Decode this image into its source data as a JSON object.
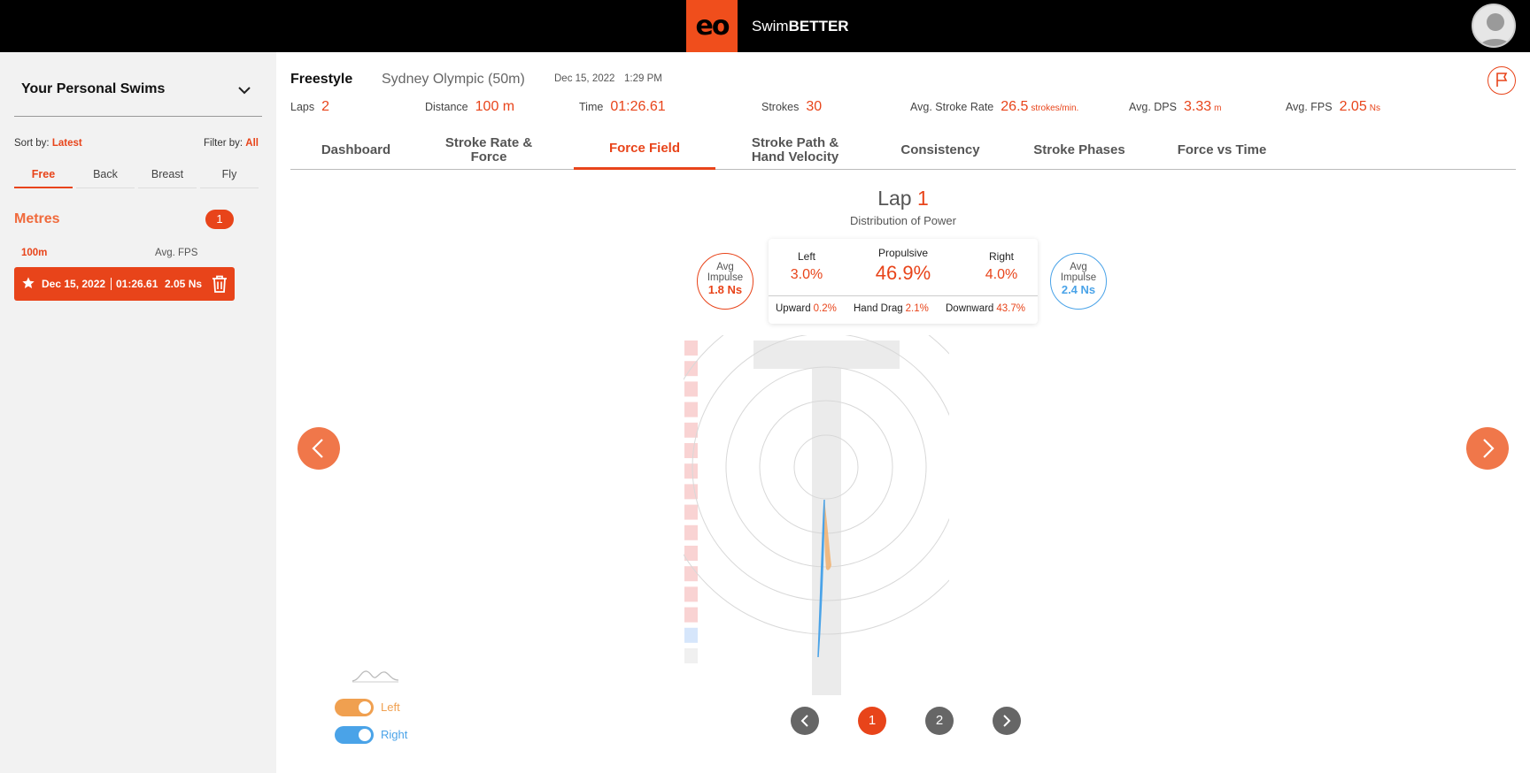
{
  "header": {
    "logo_text": "eo",
    "brand_prefix": "Swim",
    "brand_bold": "BETTER"
  },
  "sidebar": {
    "title": "Your Personal Swims",
    "sort_label": "Sort by:",
    "sort_value": "Latest",
    "filter_label": "Filter by:",
    "filter_value": "All",
    "stroke_tabs": [
      {
        "label": "Free",
        "active": true
      },
      {
        "label": "Back",
        "active": false
      },
      {
        "label": "Breast",
        "active": false
      },
      {
        "label": "Fly",
        "active": false
      }
    ],
    "group_label": "Metres",
    "group_count": "1",
    "col_distance": "100m",
    "col_fps": "Avg. FPS",
    "swims": [
      {
        "date": "Dec 15, 2022",
        "time": "01:26.61",
        "fps": "2.05 Ns"
      }
    ]
  },
  "session": {
    "stroke": "Freestyle",
    "pool": "Sydney Olympic (50m)",
    "date": "Dec 15, 2022",
    "time": "1:29 PM",
    "stats": [
      {
        "label": "Laps",
        "value": "2",
        "unit": ""
      },
      {
        "label": "Distance",
        "value": "100 m",
        "unit": ""
      },
      {
        "label": "Time",
        "value": "01:26.61",
        "unit": ""
      },
      {
        "label": "Strokes",
        "value": "30",
        "unit": ""
      },
      {
        "label": "Avg. Stroke Rate",
        "value": "26.5",
        "unit": "strokes/min."
      },
      {
        "label": "Avg. DPS",
        "value": "3.33",
        "unit": "m"
      },
      {
        "label": "Avg. FPS",
        "value": "2.05",
        "unit": "Ns"
      }
    ]
  },
  "tabs": [
    {
      "label": "Dashboard",
      "active": false
    },
    {
      "label": "Stroke Rate & Force",
      "active": false
    },
    {
      "label": "Force Field",
      "active": true
    },
    {
      "label": "Stroke Path & Hand Velocity",
      "active": false
    },
    {
      "label": "Consistency",
      "active": false
    },
    {
      "label": "Stroke Phases",
      "active": false
    },
    {
      "label": "Force vs Time",
      "active": false
    }
  ],
  "force_field": {
    "lap_label": "Lap",
    "lap_number": "1",
    "subtitle": "Distribution of Power",
    "left_impulse_label": "Avg Impulse",
    "left_impulse_value": "1.8 Ns",
    "right_impulse_label": "Avg Impulse",
    "right_impulse_value": "2.4 Ns",
    "left_label": "Left",
    "left_value": "3.0%",
    "propulsive_label": "Propulsive",
    "propulsive_value": "46.9%",
    "right_label": "Right",
    "right_value": "4.0%",
    "upward_label": "Upward",
    "upward_value": "0.2%",
    "hand_drag_label": "Hand Drag",
    "hand_drag_value": "2.1%",
    "downward_label": "Downward",
    "downward_value": "43.7%"
  },
  "pagination": [
    "1",
    "2"
  ],
  "legend": {
    "left_label": "Left",
    "right_label": "Right",
    "left_color": "#f0a050",
    "right_color": "#4aa3e8"
  },
  "colors": {
    "accent": "#e8441a",
    "left": "#f0a050",
    "right": "#4aa3e8"
  }
}
